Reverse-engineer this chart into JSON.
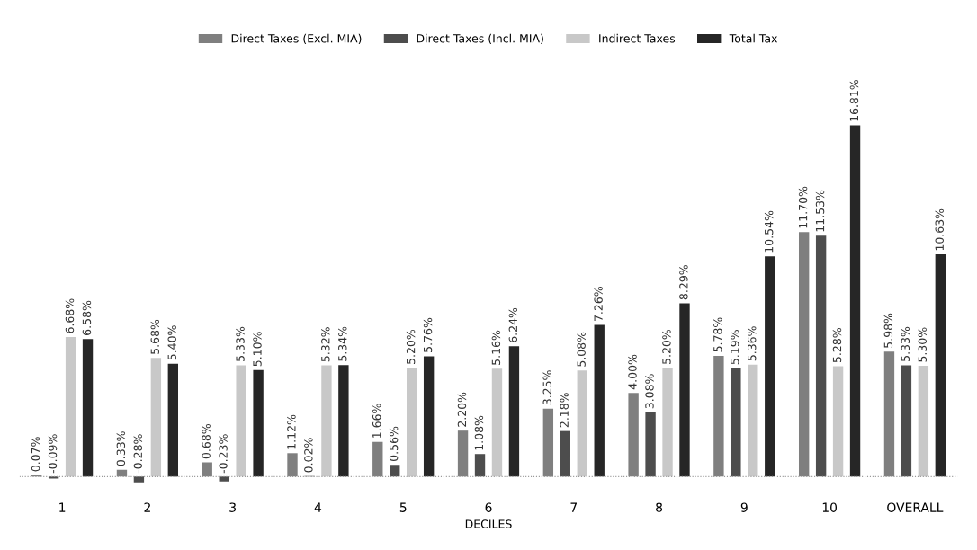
{
  "chart_data": {
    "type": "bar",
    "xlabel": "DECILES",
    "categories": [
      "1",
      "2",
      "3",
      "4",
      "5",
      "6",
      "7",
      "8",
      "9",
      "10",
      "OVERALL"
    ],
    "series": [
      {
        "name": "Direct Taxes (Excl. MIA)",
        "color": "#7f7f7f",
        "values": [
          0.07,
          0.33,
          0.68,
          1.12,
          1.66,
          2.2,
          3.25,
          4.0,
          5.78,
          11.7,
          5.98
        ],
        "value_labels": [
          "0.07%",
          "0.33%",
          "0.68%",
          "1.12%",
          "1.66%",
          "2.20%",
          "3.25%",
          "4.00%",
          "5.78%",
          "11.70%",
          "5.98%"
        ]
      },
      {
        "name": "Direct Taxes (Incl. MIA)",
        "color": "#4d4d4d",
        "values": [
          -0.09,
          -0.28,
          -0.23,
          0.02,
          0.56,
          1.08,
          2.18,
          3.08,
          5.19,
          11.53,
          5.33
        ],
        "value_labels": [
          "-0.09%",
          "-0.28%",
          "-0.23%",
          "0.02%",
          "0.56%",
          "1.08%",
          "2.18%",
          "3.08%",
          "5.19%",
          "11.53%",
          "5.33%"
        ]
      },
      {
        "name": "Indirect Taxes",
        "color": "#c8c8c8",
        "values": [
          6.68,
          5.68,
          5.33,
          5.32,
          5.2,
          5.16,
          5.08,
          5.2,
          5.36,
          5.28,
          5.3
        ],
        "value_labels": [
          "6.68%",
          "5.68%",
          "5.33%",
          "5.32%",
          "5.20%",
          "5.16%",
          "5.08%",
          "5.20%",
          "5.36%",
          "5.28%",
          "5.30%"
        ]
      },
      {
        "name": "Total Tax",
        "color": "#262626",
        "values": [
          6.58,
          5.4,
          5.1,
          5.34,
          5.76,
          6.24,
          7.26,
          8.29,
          10.54,
          16.81,
          10.63
        ],
        "value_labels": [
          "6.58%",
          "5.40%",
          "5.10%",
          "5.34%",
          "5.76%",
          "6.24%",
          "7.26%",
          "8.29%",
          "10.54%",
          "16.81%",
          "10.63%"
        ]
      }
    ],
    "ref_lines": [
      {
        "axis": "y",
        "value": 0,
        "color": "#999999",
        "line_style": "dotted"
      }
    ],
    "legend": "top",
    "tick_labels": "x"
  }
}
